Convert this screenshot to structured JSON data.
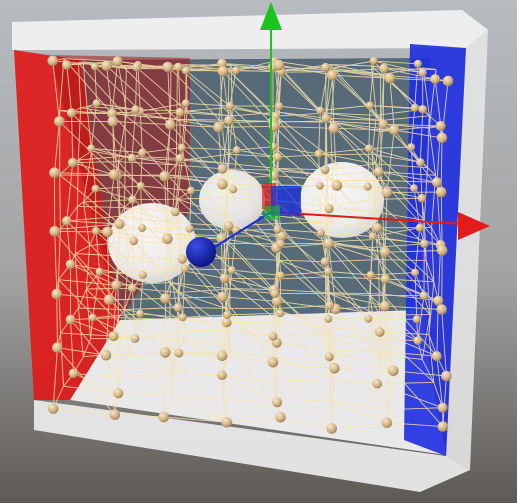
{
  "viewport": {
    "background_top": "#b7bcc1",
    "background_bottom": "#5d5955"
  },
  "scene": {
    "box": {
      "back_wall": "#566a78",
      "left_wall": "#e01a1a",
      "right_wall": "#1f2ee0",
      "floor": "#e8e8e8",
      "frame": "#f2f2f2"
    },
    "spring_color": "#f6e3b0",
    "particle_color": "#c9a878",
    "gizmo": {
      "x_axis": "#e31b1b",
      "y_axis": "#18c51a",
      "z_axis": "#1a2fe0",
      "selected_handle": "#0b1ab5"
    }
  }
}
